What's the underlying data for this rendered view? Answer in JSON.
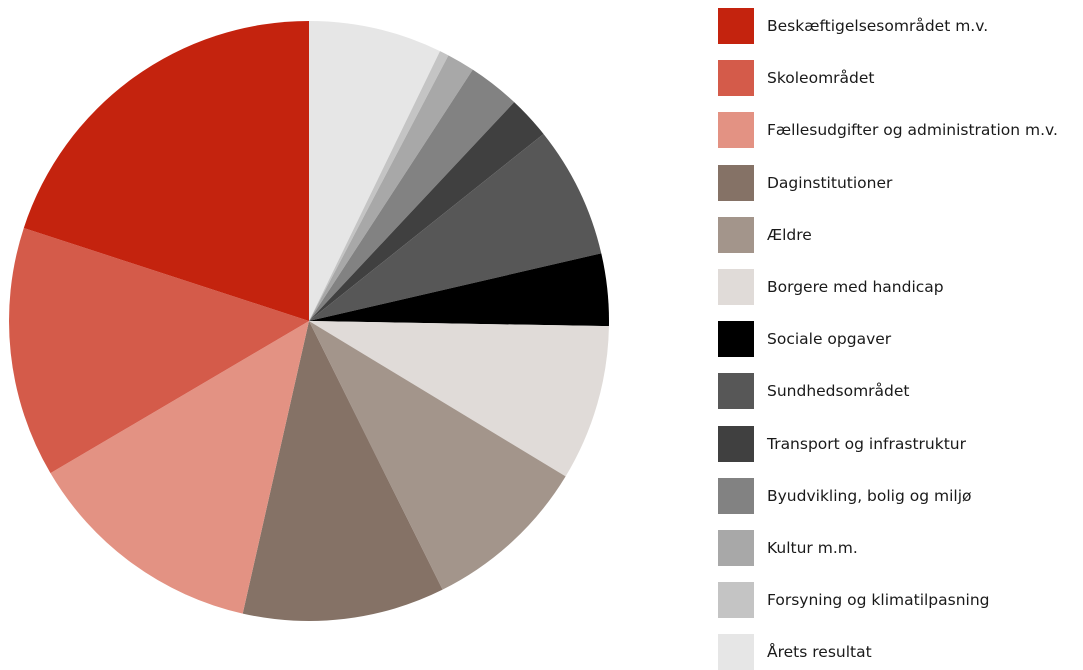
{
  "chart_data": {
    "type": "pie",
    "title": "",
    "start_angle_deg": 0,
    "direction": "clockwise",
    "slices": [
      {
        "label": "Årets resultat",
        "value": 7.2,
        "color": "#E6E6E6"
      },
      {
        "label": "Forsyning og klimatilpasning",
        "value": 0.5,
        "color": "#C4C4C4"
      },
      {
        "label": "Kultur m.m.",
        "value": 1.5,
        "color": "#A8A8A8"
      },
      {
        "label": "Byudvikling, bolig og miljø",
        "value": 2.8,
        "color": "#828282"
      },
      {
        "label": "Transport og infrastruktur",
        "value": 2.3,
        "color": "#404040"
      },
      {
        "label": "Sundhedsområdet",
        "value": 7.1,
        "color": "#575757"
      },
      {
        "label": "Sociale opgaver",
        "value": 3.9,
        "color": "#000000"
      },
      {
        "label": "Borgere med handicap",
        "value": 8.4,
        "color": "#E0DBD8"
      },
      {
        "label": "Ældre",
        "value": 9.0,
        "color": "#A3958B"
      },
      {
        "label": "Daginstitutioner",
        "value": 10.9,
        "color": "#857266"
      },
      {
        "label": "Fællesudgifter og administration m.v.",
        "value": 13.0,
        "color": "#E39283"
      },
      {
        "label": "Skoleområdet",
        "value": 13.5,
        "color": "#D45B4A"
      },
      {
        "label": "Beskæftigelsesområdet m.v.",
        "value": 20.0,
        "color": "#C4230E"
      }
    ],
    "legend": {
      "placement": "right",
      "order": [
        "Beskæftigelsesområdet m.v.",
        "Skoleområdet",
        "Fællesudgifter og administration m.v.",
        "Daginstitutioner",
        "Ældre",
        "Borgere med handicap",
        "Sociale opgaver",
        "Sundhedsområdet",
        "Transport og infrastruktur",
        "Byudvikling, bolig og miljø",
        "Kultur m.m.",
        "Forsyning og klimatilpasning",
        "Årets resultat"
      ]
    }
  }
}
